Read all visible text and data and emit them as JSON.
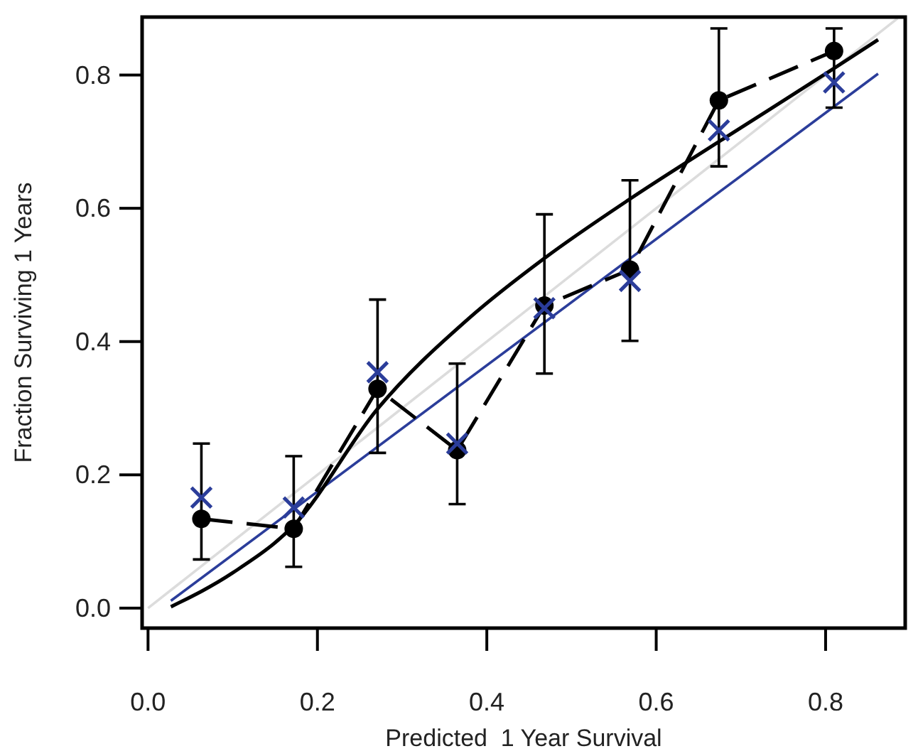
{
  "chart_data": {
    "type": "line",
    "xlabel": "Predicted  1 Year Survival",
    "ylabel": "Fraction Surviving 1 Years",
    "xlim": [
      -0.007,
      0.894
    ],
    "ylim": [
      -0.03,
      0.887
    ],
    "xticks": [
      {
        "value": 0,
        "label": "0.0"
      },
      0.2,
      0.4,
      0.6,
      0.8
    ],
    "yticks": [
      {
        "value": 0,
        "label": "0.0"
      },
      0.2,
      0.4,
      0.6,
      0.8
    ],
    "grid": false,
    "series": [
      {
        "color": "#dcdcdc",
        "x": [
          0.0,
          0.885
        ],
        "values": [
          0.0,
          0.885
        ],
        "marker": "none",
        "line_style": "solid"
      },
      {
        "color": "#2b3d9a",
        "x": [
          0.027,
          0.862
        ],
        "values": [
          0.011,
          0.802
        ],
        "marker": "none",
        "line_style": "solid"
      },
      {
        "color": "#000000",
        "x": [
          0.027,
          0.1,
          0.172,
          0.271,
          0.379,
          0.468,
          0.569,
          0.674,
          0.81,
          0.862
        ],
        "values": [
          0.002,
          0.053,
          0.124,
          0.299,
          0.435,
          0.525,
          0.614,
          0.7,
          0.81,
          0.853
        ],
        "marker": "none",
        "line_style": "solid"
      },
      {
        "color": "#000000",
        "x": [
          0.063,
          0.172,
          0.271,
          0.365,
          0.468,
          0.569,
          0.674,
          0.81
        ],
        "values": [
          0.134,
          0.119,
          0.329,
          0.237,
          0.454,
          0.508,
          0.762,
          0.836
        ],
        "errors": [
          [
            0.073,
            0.247
          ],
          [
            0.062,
            0.228
          ],
          [
            0.233,
            0.463
          ],
          [
            0.156,
            0.367
          ],
          [
            0.352,
            0.591
          ],
          [
            0.401,
            0.642
          ],
          [
            0.663,
            0.87
          ],
          [
            0.751,
            0.87
          ]
        ],
        "marker": "circle",
        "line_style": "dashed"
      },
      {
        "type": "scatter",
        "color": "#2b3d9a",
        "x": [
          0.063,
          0.172,
          0.271,
          0.365,
          0.468,
          0.569,
          0.674,
          0.81
        ],
        "values": [
          0.166,
          0.151,
          0.354,
          0.247,
          0.45,
          0.491,
          0.717,
          0.789
        ],
        "marker": "cross"
      }
    ]
  }
}
